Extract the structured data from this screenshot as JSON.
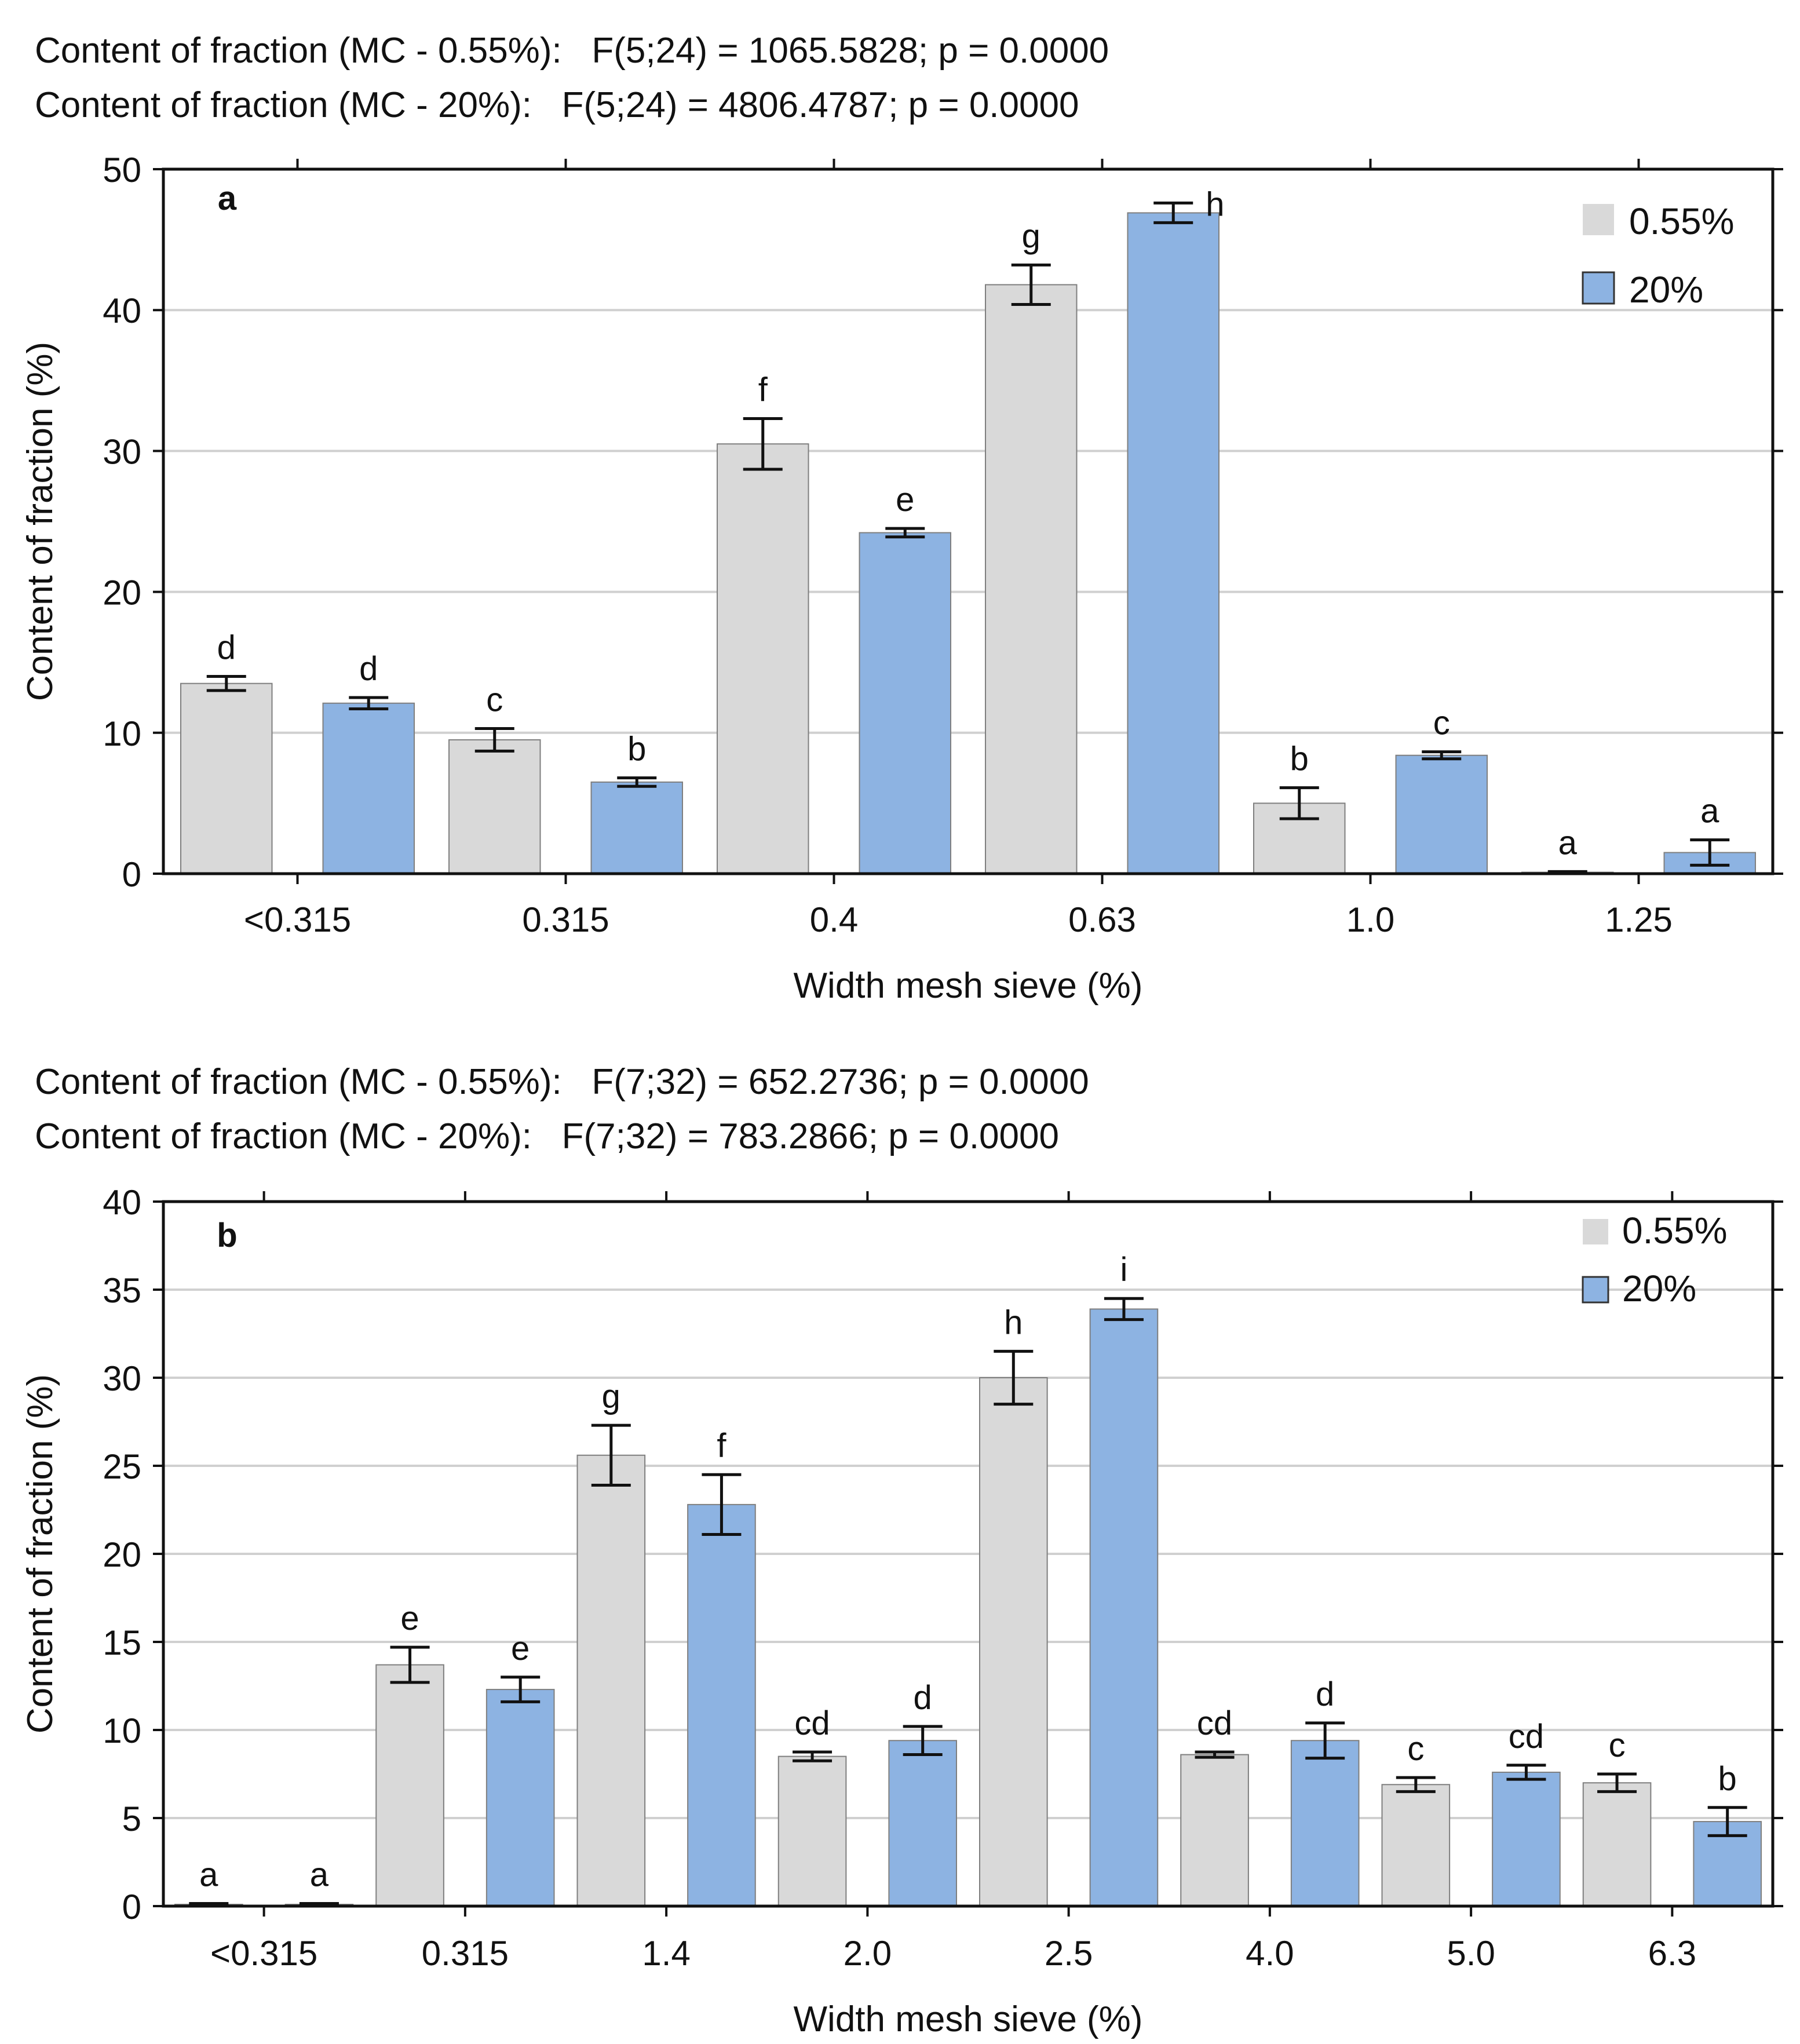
{
  "colors": {
    "c055": "#d9d9d9",
    "c20": "#8db3e2",
    "grid": "#d0d0d0",
    "axis": "#111111",
    "barEdge": "#7f7f7f"
  },
  "chart_data": [
    {
      "type": "bar",
      "panel_label": "a",
      "stats": [
        "Content of fraction (MC - 0.55%):   F(5;24) = 1065.5828; p = 0.0000",
        "Content of fraction (MC - 20%):   F(5;24) = 4806.4787; p = 0.0000"
      ],
      "categories": [
        "<0.315",
        "0.315",
        "0.4",
        "0.63",
        "1.0",
        "1.25"
      ],
      "series": [
        {
          "name": "0.55%",
          "values": [
            13.5,
            9.5,
            30.5,
            41.8,
            5.0,
            0.1
          ],
          "errors": [
            0.5,
            0.8,
            1.8,
            1.4,
            1.1,
            0.05
          ],
          "letters": [
            "d",
            "c",
            "f",
            "g",
            "b",
            "a"
          ]
        },
        {
          "name": "20%",
          "values": [
            12.1,
            6.5,
            24.2,
            46.9,
            8.4,
            1.5
          ],
          "errors": [
            0.4,
            0.3,
            0.3,
            0.7,
            0.25,
            0.9
          ],
          "letters": [
            "d",
            "b",
            "e",
            "h",
            "c",
            "a"
          ]
        }
      ],
      "xlabel": "Width mesh sieve (%)",
      "ylabel": "Content of fraction (%)",
      "ylim": [
        0,
        50
      ],
      "yticks": [
        0,
        10,
        20,
        30,
        40,
        50
      ],
      "grid": true,
      "legend_position": "top-right"
    },
    {
      "type": "bar",
      "panel_label": "b",
      "stats": [
        "Content of fraction (MC - 0.55%):   F(7;32) = 652.2736; p = 0.0000",
        "Content of fraction (MC - 20%):   F(7;32) = 783.2866; p = 0.0000"
      ],
      "categories": [
        "<0.315",
        "0.315",
        "1.4",
        "2.0",
        "2.5",
        "4.0",
        "5.0",
        "6.3"
      ],
      "series": [
        {
          "name": "0.55%",
          "values": [
            0.1,
            13.7,
            25.6,
            8.5,
            30.0,
            8.6,
            6.9,
            7.0
          ],
          "errors": [
            0.05,
            1.0,
            1.7,
            0.25,
            1.5,
            0.15,
            0.4,
            0.5
          ],
          "letters": [
            "a",
            "e",
            "g",
            "cd",
            "h",
            "cd",
            "c",
            "c"
          ]
        },
        {
          "name": "20%",
          "values": [
            0.1,
            12.3,
            22.8,
            9.4,
            33.9,
            9.4,
            7.6,
            4.8
          ],
          "errors": [
            0.05,
            0.7,
            1.7,
            0.8,
            0.6,
            1.0,
            0.4,
            0.8
          ],
          "letters": [
            "a",
            "e",
            "f",
            "d",
            "i",
            "d",
            "cd",
            "b"
          ]
        }
      ],
      "xlabel": "Width mesh sieve (%)",
      "ylabel": "Content of fraction (%)",
      "ylim": [
        0,
        40
      ],
      "yticks": [
        0,
        5,
        10,
        15,
        20,
        25,
        30,
        35,
        40
      ],
      "grid": true,
      "legend_position": "top-right"
    }
  ]
}
